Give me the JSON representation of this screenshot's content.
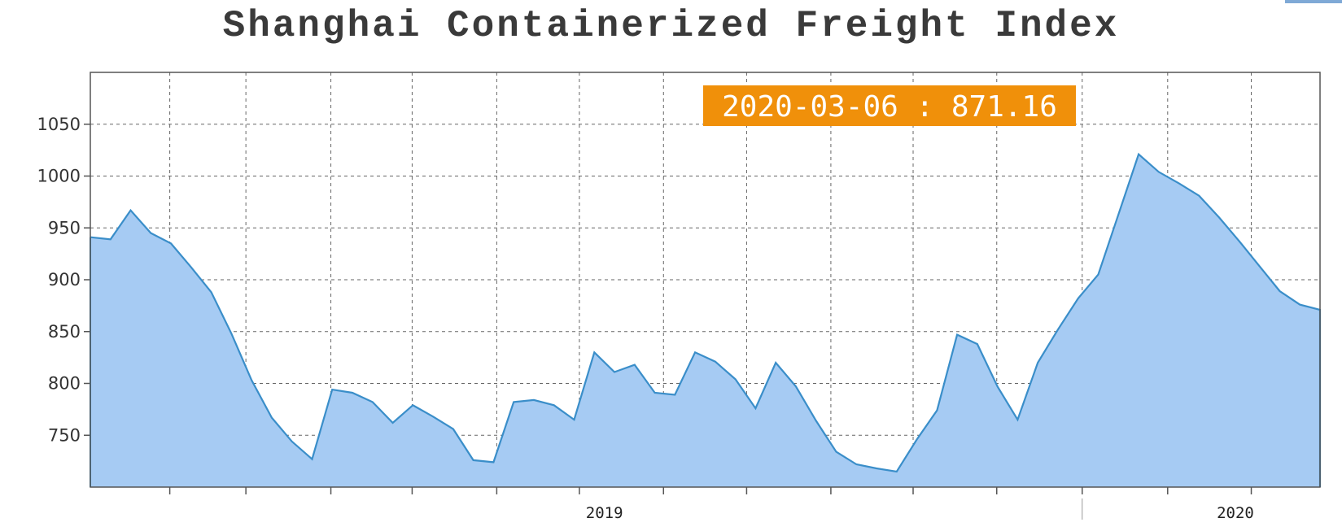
{
  "chart_data": {
    "type": "area",
    "title": "Shanghai Containerized Freight Index",
    "xlabel": "",
    "ylabel": "",
    "ylim": [
      700,
      1100
    ],
    "yticks": [
      750,
      800,
      850,
      900,
      950,
      1000,
      1050
    ],
    "xticks": [
      {
        "label": "2019",
        "index": 25.5
      },
      {
        "label": "2020",
        "index": 56.8
      }
    ],
    "grid": true,
    "series": [
      {
        "name": "",
        "color": "#3a8ec9",
        "fill": "#a6cbf3",
        "values": [
          941,
          939,
          967,
          945,
          935,
          912,
          888,
          848,
          803,
          767,
          744,
          727,
          794,
          791,
          782,
          762,
          779,
          768,
          756,
          726,
          724,
          782,
          784,
          779,
          765,
          830,
          811,
          818,
          791,
          789,
          830,
          821,
          804,
          776,
          820,
          797,
          764,
          734,
          722,
          718,
          715,
          746,
          774,
          847,
          838,
          797,
          765,
          820,
          852,
          882,
          905,
          963,
          1021,
          1004,
          993,
          981,
          960,
          937,
          913,
          889,
          876,
          871
        ]
      }
    ],
    "tooltip": {
      "label": "2020-03-06 : 871.16",
      "color": "#f0900a"
    }
  }
}
